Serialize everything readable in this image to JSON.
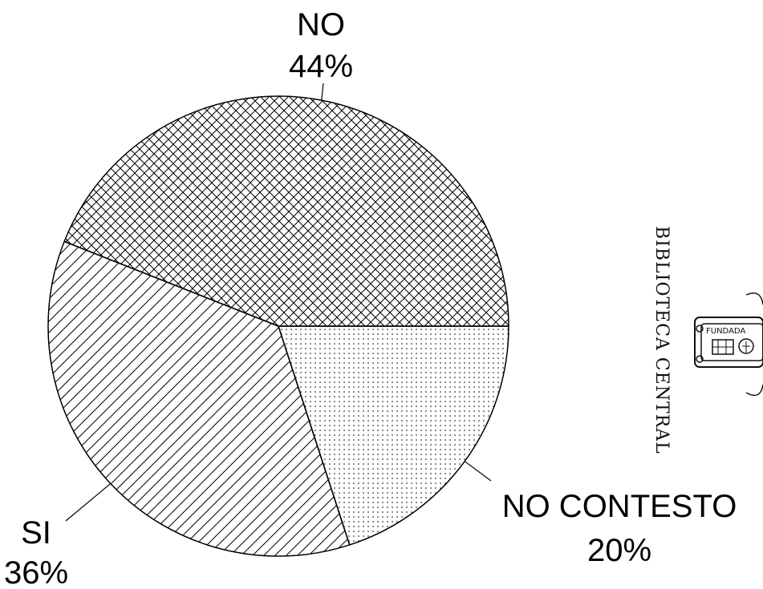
{
  "chart_data": {
    "type": "pie",
    "title": "",
    "slices": [
      {
        "label": "NO",
        "percent_label": "44%",
        "value": 44,
        "pattern": "crosshatch"
      },
      {
        "label": "NO CONTESTO",
        "percent_label": "20%",
        "value": 20,
        "pattern": "dots"
      },
      {
        "label": "SI",
        "percent_label": "36%",
        "value": 36,
        "pattern": "diagonal"
      }
    ]
  },
  "stamp": {
    "text": "BIBLIOTECA CENTRAL",
    "seal_text": "FUNDADA"
  }
}
